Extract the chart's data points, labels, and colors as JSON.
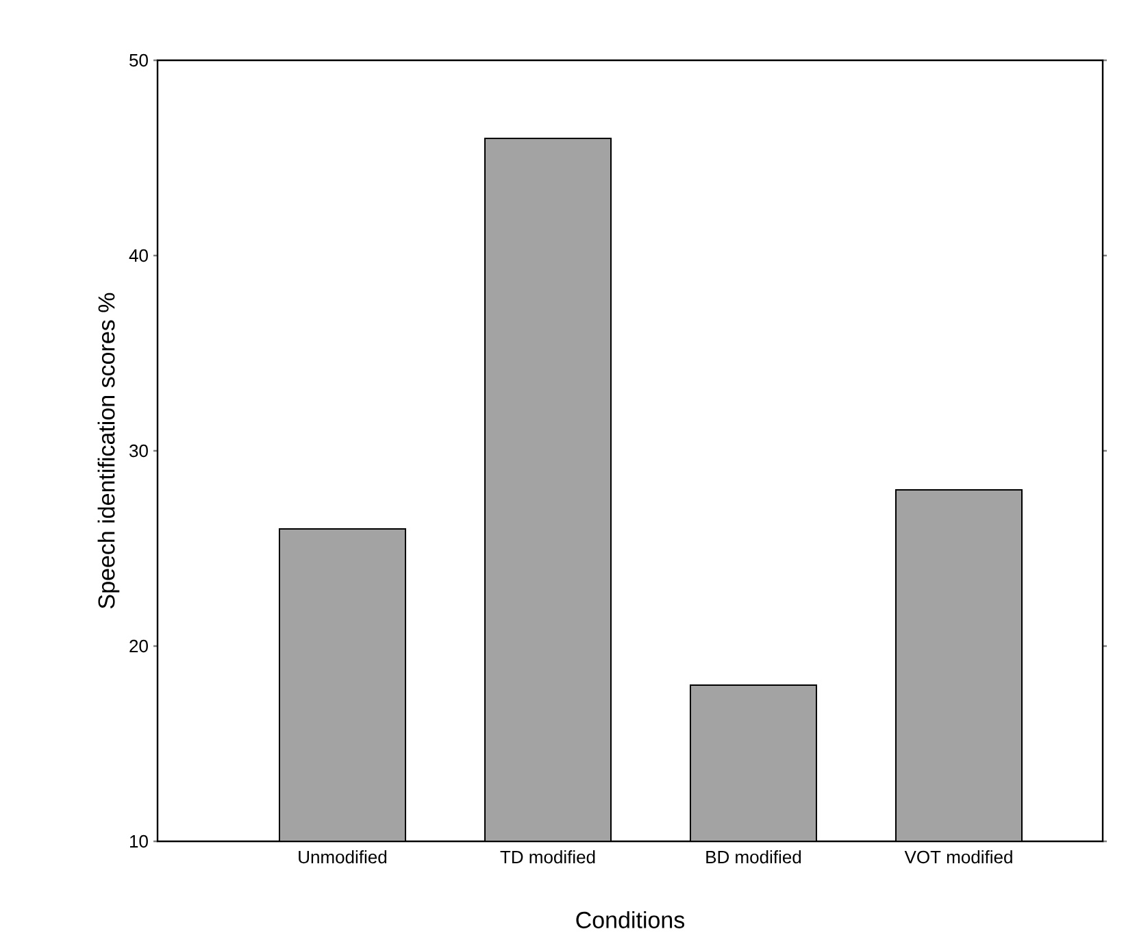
{
  "chart_data": {
    "type": "bar",
    "xlabel": "Conditions",
    "ylabel": "Speech identification scores %",
    "categories": [
      "Unmodified",
      "TD modified",
      "BD modified",
      "VOT modified"
    ],
    "values": [
      26,
      46,
      18,
      28
    ],
    "color": "#a3a3a3",
    "ylim": [
      10,
      50
    ],
    "yticks": [
      10,
      20,
      30,
      40,
      50
    ],
    "grid": false
  }
}
